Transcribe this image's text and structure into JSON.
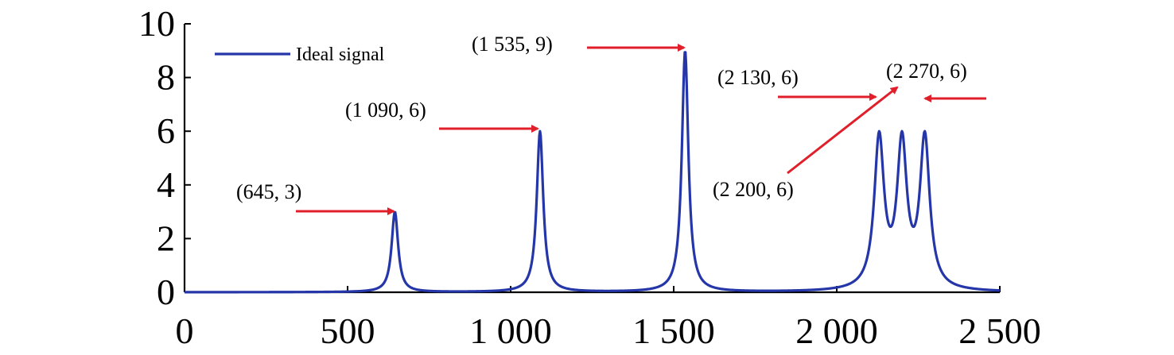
{
  "chart_data": {
    "type": "line",
    "xlim": [
      0,
      2500
    ],
    "ylim": [
      0,
      10
    ],
    "x_ticks": [
      0,
      500,
      1000,
      1500,
      2000,
      2500
    ],
    "x_tick_labels": [
      "0",
      "500",
      "1 000",
      "1 500",
      "2 000",
      "2 500"
    ],
    "y_ticks": [
      0,
      2,
      4,
      6,
      8,
      10
    ],
    "y_tick_labels": [
      "0",
      "2",
      "4",
      "6",
      "8",
      "10"
    ],
    "grid": false,
    "legend_position": "top-left",
    "series": [
      {
        "name": "Ideal signal",
        "color": "#2536a8",
        "peaks": [
          {
            "center": 645,
            "amplitude": 3,
            "gamma": 12
          },
          {
            "center": 1090,
            "amplitude": 6,
            "gamma": 12
          },
          {
            "center": 1535,
            "amplitude": 9,
            "gamma": 12
          },
          {
            "center": 2130,
            "amplitude": 6,
            "gamma": 18
          },
          {
            "center": 2200,
            "amplitude": 6,
            "gamma": 18
          },
          {
            "center": 2270,
            "amplitude": 6,
            "gamma": 18
          }
        ]
      }
    ],
    "annotations": [
      {
        "text": "(645, 3)",
        "x": 645,
        "y": 3,
        "arrow_color": "#e01f2a"
      },
      {
        "text": "(1 090, 6)",
        "x": 1090,
        "y": 6,
        "arrow_color": "#e01f2a"
      },
      {
        "text": "(1 535, 9)",
        "x": 1535,
        "y": 9,
        "arrow_color": "#e01f2a"
      },
      {
        "text": "(2 130, 6)",
        "x": 2130,
        "y": 6,
        "arrow_color": "#e01f2a"
      },
      {
        "text": "(2 200, 6)",
        "x": 2200,
        "y": 6,
        "arrow_color": "#e01f2a"
      },
      {
        "text": "(2 270, 6)",
        "x": 2270,
        "y": 6,
        "arrow_color": "#e01f2a"
      }
    ]
  }
}
